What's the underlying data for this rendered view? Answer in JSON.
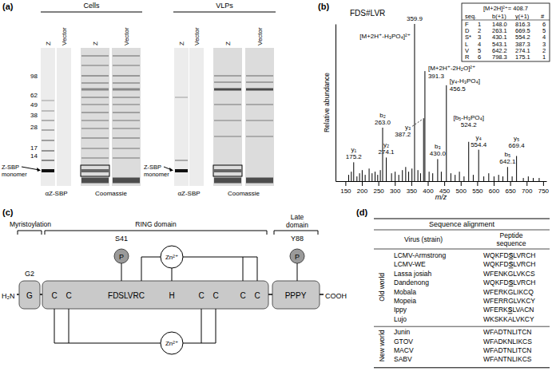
{
  "panel_labels": [
    "(a)",
    "(b)",
    "(c)",
    "(d)"
  ],
  "panel_a": {
    "markers": [
      98,
      62,
      49,
      38,
      28,
      17,
      14
    ],
    "groups": [
      {
        "title": "Cells",
        "lanes": [
          "Z",
          "Vector"
        ],
        "blot_label": "αZ-SBP",
        "stain_label": "Coomassie",
        "monomer_label": [
          "Z-SBP",
          "monomer"
        ]
      },
      {
        "title": "VLPs",
        "lanes": [
          "Z",
          "Vector"
        ],
        "blot_label": "αZ-SBP",
        "stain_label": "Coomassie",
        "monomer_label": [
          "Z-SBP",
          "monomer"
        ]
      }
    ]
  },
  "chart_data": {
    "type": "stem",
    "title": "FDS#LVR",
    "x_label": "m/z",
    "y_label": "Relative abundance",
    "color": "#000000",
    "x": [
      160,
      168,
      175.2,
      185,
      193,
      201,
      210,
      222,
      231,
      240,
      248,
      256,
      263.0,
      274.1,
      290,
      301,
      312,
      323,
      333,
      342,
      352,
      359.9,
      370,
      378,
      387.2,
      391.3,
      404,
      415,
      430.0,
      441,
      456.5,
      470,
      483,
      496,
      510,
      524.2,
      538,
      554.4,
      570,
      585,
      601,
      615,
      628,
      642.1,
      656,
      669.4,
      690,
      705,
      720,
      738
    ],
    "values": [
      4,
      6,
      12,
      3,
      5,
      7,
      4,
      8,
      5,
      6,
      4,
      7,
      34,
      15,
      5,
      6,
      4,
      7,
      9,
      6,
      8,
      100,
      7,
      5,
      40,
      70,
      6,
      5,
      14,
      6,
      61,
      5,
      4,
      6,
      3,
      25,
      4,
      20,
      3,
      5,
      3,
      4,
      3,
      9,
      3,
      16,
      2,
      3,
      2,
      2
    ],
    "peak_labels": [
      null,
      null,
      [
        "y₁",
        "175.2"
      ],
      null,
      null,
      null,
      null,
      null,
      null,
      null,
      null,
      null,
      [
        "b₂",
        "263.0"
      ],
      [
        "y₂",
        "274.1"
      ],
      null,
      null,
      null,
      null,
      null,
      null,
      null,
      [
        "[M+2H⁺-H₃PO₄]²⁺",
        "359.9"
      ],
      null,
      null,
      [
        "y₃",
        "387.2"
      ],
      [
        "[M+2H⁺-2H₂O]²⁺",
        "391.3"
      ],
      null,
      null,
      [
        "b₃",
        "430.0"
      ],
      null,
      [
        "[y₄-H₃PO₄]",
        "456.5"
      ],
      null,
      null,
      null,
      null,
      [
        "[b₅-H₃PO₄]",
        "524.2"
      ],
      null,
      [
        "y₄",
        "554.4"
      ],
      null,
      null,
      null,
      null,
      null,
      [
        "b₅",
        "642.1"
      ],
      null,
      [
        "y₅",
        "669.4"
      ],
      null,
      null,
      null,
      null
    ],
    "xlim": [
      120,
      760
    ],
    "xticks": [
      150,
      200,
      250,
      300,
      350,
      400,
      450,
      500,
      550,
      600,
      650,
      700,
      750
    ],
    "ylim": [
      0,
      100
    ],
    "tick_labels": "x",
    "inset": {
      "title": "[M+2H]²⁺= 408.7",
      "columns": [
        "seq.",
        "b(+1)",
        "y(+1)",
        "#"
      ],
      "rows": [
        [
          "F",
          "1",
          "148.0",
          "816.3",
          "6"
        ],
        [
          "D",
          "2",
          "263.1",
          "669.5",
          "5"
        ],
        [
          "S*",
          "3",
          "430.1",
          "554.2",
          "4"
        ],
        [
          "L",
          "4",
          "543.1",
          "387.3",
          "3"
        ],
        [
          "V",
          "5",
          "642.2",
          "274.1",
          "2"
        ],
        [
          "R",
          "6",
          "798.3",
          "175.1",
          "1"
        ]
      ]
    }
  },
  "panel_c": {
    "domains": [
      [
        "Myristoylation"
      ],
      [
        "RING domain"
      ],
      [
        "Late",
        "domain"
      ]
    ],
    "sites": [
      {
        "label": "G2"
      },
      {
        "label": "S41",
        "modification": "P"
      },
      {
        "label": "Y88",
        "modification": "P"
      }
    ],
    "n_terminus": "H₂N",
    "c_terminus": "COOH",
    "myristoylation": [
      "G"
    ],
    "ring": [
      "C",
      "C",
      "FDSLVRC",
      "H",
      "C",
      "C",
      "C",
      "C"
    ],
    "late": [
      "PPPY"
    ],
    "zinc": [
      "Zn²⁺",
      "Zn²⁺"
    ]
  },
  "panel_d": {
    "title": "Sequence alignment",
    "columns": [
      [
        "Virus (strain)"
      ],
      [
        "Peptide",
        "sequence"
      ]
    ],
    "groups": [
      {
        "name": "Old world",
        "rows": [
          {
            "virus": "LCMV-Armstrong",
            "peptide": [
              "WQKFD",
              "S",
              "LVRCH"
            ]
          },
          {
            "virus": "LCMV-WE",
            "peptide": [
              "WQKFD",
              "S",
              "LVRCH"
            ]
          },
          {
            "virus": "Lassa josiah",
            "peptide": [
              "WFENKGLVKCS"
            ]
          },
          {
            "virus": "Dandenong",
            "peptide": [
              "WQKFD",
              "S",
              "LVRCH"
            ]
          },
          {
            "virus": "Mobala",
            "peptide": [
              "WFERKGLIKCQ"
            ]
          },
          {
            "virus": "Mopeia",
            "peptide": [
              "WFERRGLVKCY"
            ]
          },
          {
            "virus": "Ippy",
            "peptide": [
              "WFERK",
              "S",
              "LVACN"
            ]
          },
          {
            "virus": "Lujo",
            "peptide": [
              "WKSKKALVKCY"
            ]
          }
        ]
      },
      {
        "name": "New world",
        "rows": [
          {
            "virus": "Junin",
            "peptide": [
              "WFADTNLITCN"
            ]
          },
          {
            "virus": "GTOV",
            "peptide": [
              "WFADKNLIKCS"
            ]
          },
          {
            "virus": "MACV",
            "peptide": [
              "WFADTNLITCN"
            ]
          },
          {
            "virus": "SABV",
            "peptide": [
              "WFANTNLIKCS"
            ]
          }
        ]
      }
    ]
  }
}
